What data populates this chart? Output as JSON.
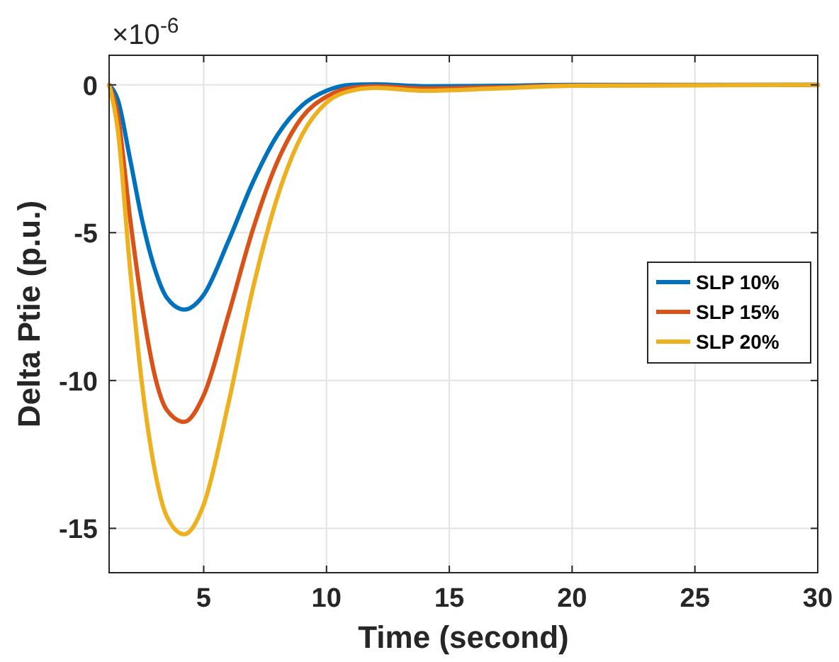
{
  "chart_data": {
    "type": "line",
    "xlabel": "Time (second)",
    "ylabel": "Delta Ptie (p.u.)",
    "annotations": [
      "×10$^{-6}$"
    ],
    "x": [
      1.15,
      1.5,
      2,
      2.5,
      3,
      3.5,
      4.2,
      5,
      6,
      7,
      8,
      9,
      10,
      11,
      12,
      14,
      17,
      20,
      30
    ],
    "series": [
      {
        "name": "SLP 10%",
        "color": "#0072bd",
        "values": [
          0,
          -0.5,
          -2.5,
          -4.6,
          -6.2,
          -7.2,
          -7.6,
          -7.1,
          -5.3,
          -3.3,
          -1.7,
          -0.7,
          -0.2,
          0,
          0.02,
          -0.05,
          -0.03,
          0,
          0
        ]
      },
      {
        "name": "SLP 15%",
        "color": "#d95319",
        "values": [
          0,
          -1,
          -4.5,
          -7.5,
          -9.8,
          -11,
          -11.4,
          -10.5,
          -7.8,
          -4.9,
          -2.6,
          -1.1,
          -0.4,
          -0.1,
          -0.05,
          -0.12,
          -0.08,
          -0.02,
          0
        ]
      },
      {
        "name": "SLP 20%",
        "color": "#edb120",
        "values": [
          0,
          -1.5,
          -6.2,
          -10.2,
          -13,
          -14.6,
          -15.2,
          -14.2,
          -10.8,
          -6.9,
          -3.8,
          -1.7,
          -0.6,
          -0.2,
          -0.1,
          -0.2,
          -0.12,
          -0.03,
          0
        ]
      }
    ],
    "xlim": [
      1.15,
      30
    ],
    "xticks": [
      5,
      10,
      15,
      20,
      25,
      30
    ],
    "ylim": [
      -16.5,
      1
    ],
    "yticks": [
      -15,
      -10,
      -5,
      0
    ],
    "grid": true,
    "legend": "right",
    "marker": "none",
    "line_style": "solid"
  }
}
